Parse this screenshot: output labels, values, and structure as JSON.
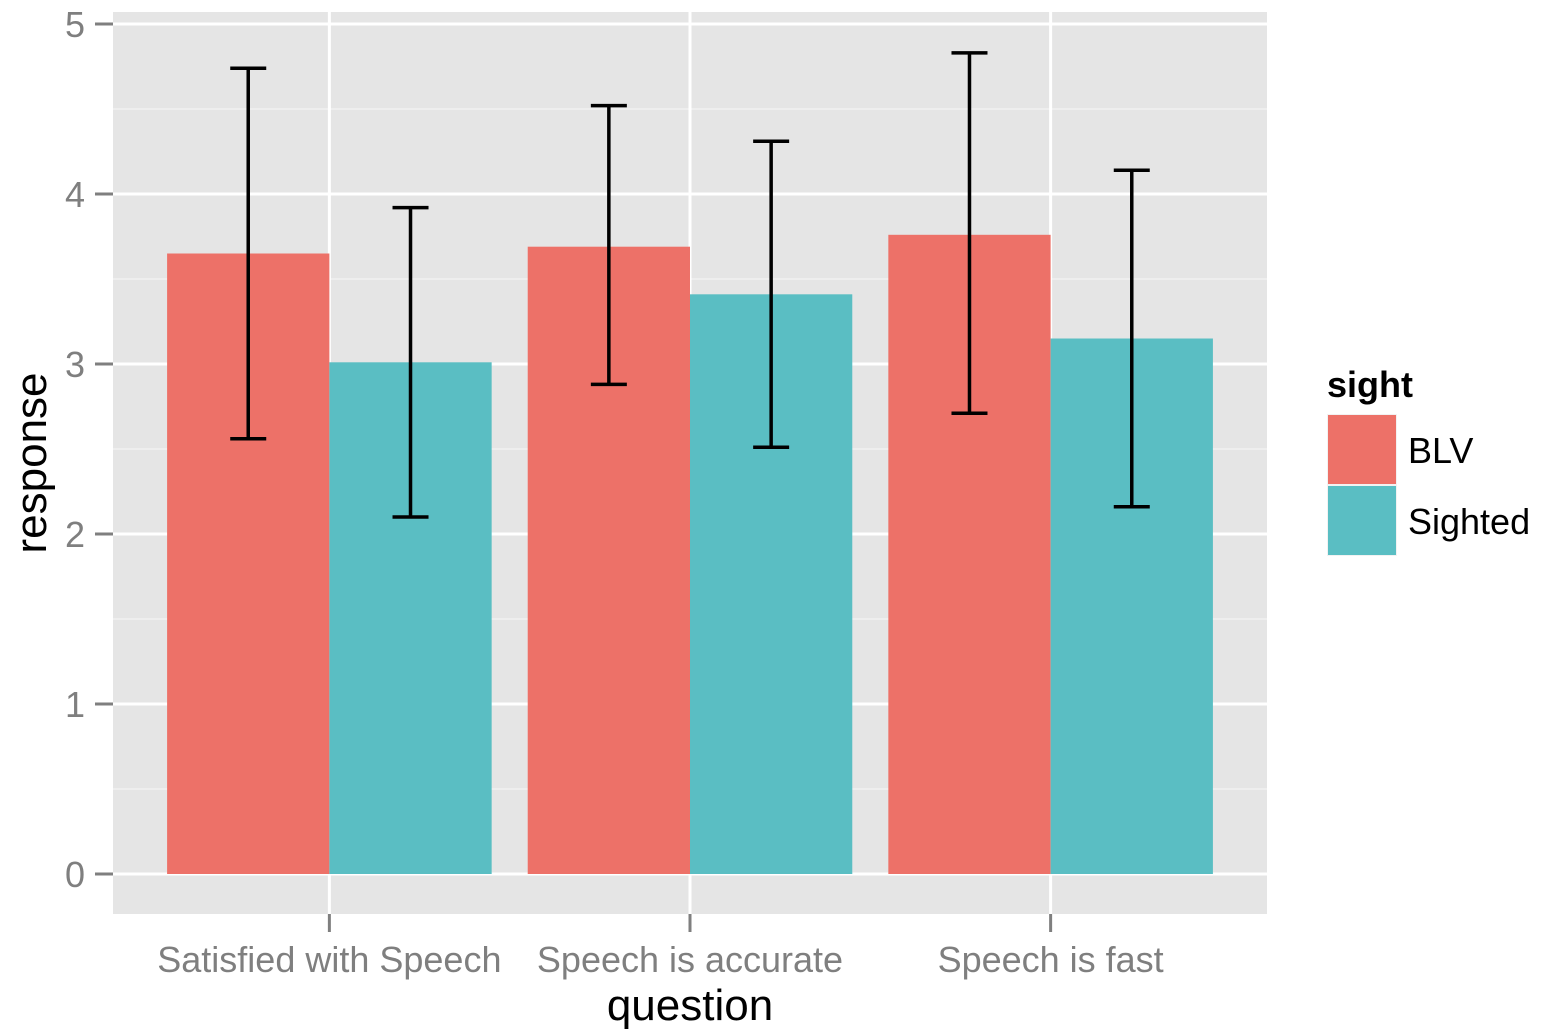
{
  "chart_data": {
    "type": "bar",
    "title": "",
    "xlabel": "question",
    "ylabel": "response",
    "ylim": [
      -0.23,
      5.1
    ],
    "yticks": [
      0,
      1,
      2,
      3,
      4,
      5
    ],
    "grid": true,
    "legend_title": "sight",
    "legend_position": "right",
    "categories": [
      "Satisfied with Speech",
      "Speech is accurate",
      "Speech is fast"
    ],
    "series": [
      {
        "name": "BLV",
        "color": "#ED7168",
        "values": [
          3.65,
          3.69,
          3.76
        ],
        "error_low": [
          2.56,
          2.88,
          2.71
        ],
        "error_high": [
          4.74,
          4.52,
          4.83
        ]
      },
      {
        "name": "Sighted",
        "color": "#5ABEC3",
        "values": [
          3.01,
          3.41,
          3.15
        ],
        "error_low": [
          2.1,
          2.51,
          2.16
        ],
        "error_high": [
          3.92,
          4.31,
          4.14
        ]
      }
    ]
  }
}
